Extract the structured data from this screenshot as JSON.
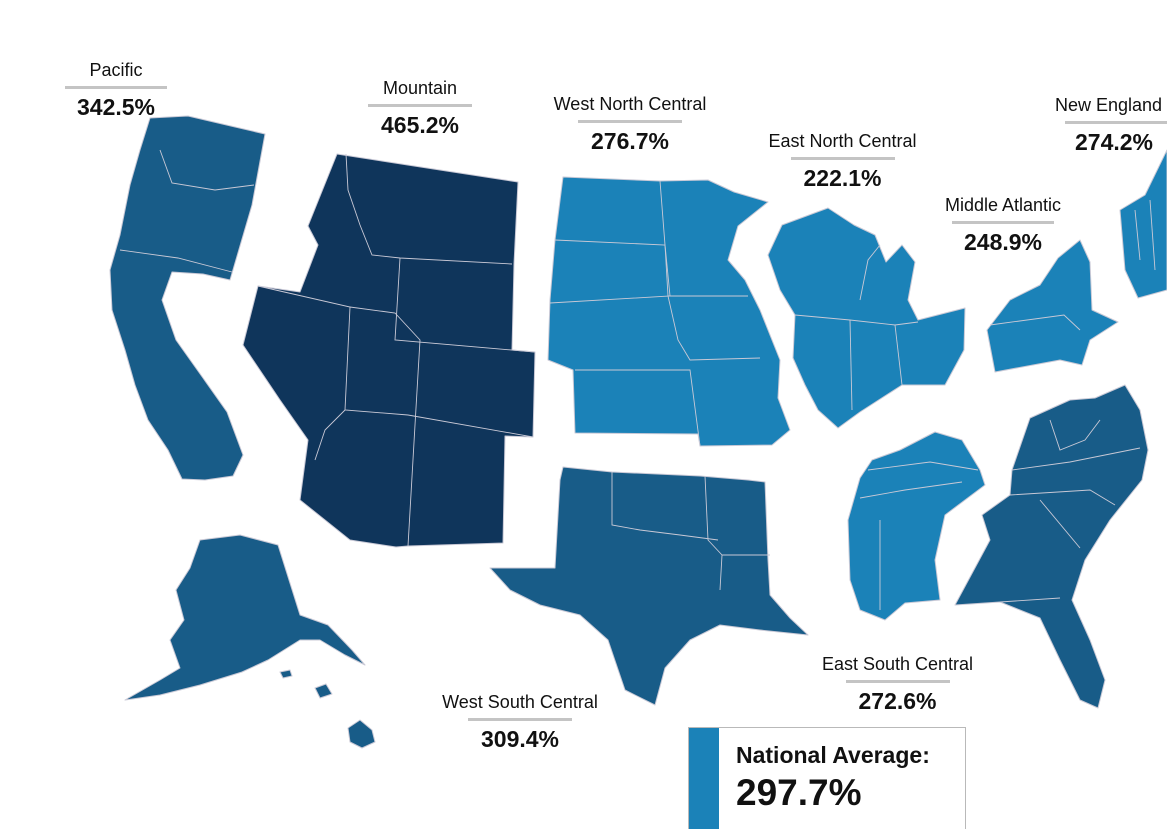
{
  "colors": {
    "dark": "#0f355b",
    "medium": "#185c88",
    "light": "#1b82b8",
    "border": "#c9c9d6"
  },
  "regions": [
    {
      "key": "pacific",
      "name": "Pacific",
      "value": "342.5%",
      "shade": "medium"
    },
    {
      "key": "mountain",
      "name": "Mountain",
      "value": "465.2%",
      "shade": "dark"
    },
    {
      "key": "west_north_central",
      "name": "West North Central",
      "value": "276.7%",
      "shade": "light"
    },
    {
      "key": "east_north_central",
      "name": "East North Central",
      "value": "222.1%",
      "shade": "light"
    },
    {
      "key": "middle_atlantic",
      "name": "Middle Atlantic",
      "value": "248.9%",
      "shade": "light"
    },
    {
      "key": "new_england",
      "name": "New England",
      "value": "274.2%",
      "shade": "light"
    },
    {
      "key": "west_south_central",
      "name": "West South Central",
      "value": "309.4%",
      "shade": "medium"
    },
    {
      "key": "east_south_central",
      "name": "East South Central",
      "value": "272.6%",
      "shade": "light"
    },
    {
      "key": "south_atlantic",
      "name": "",
      "value": "",
      "shade": "medium"
    }
  ],
  "legend": {
    "title": "National Average:",
    "value": "297.7%",
    "shade": "light"
  }
}
